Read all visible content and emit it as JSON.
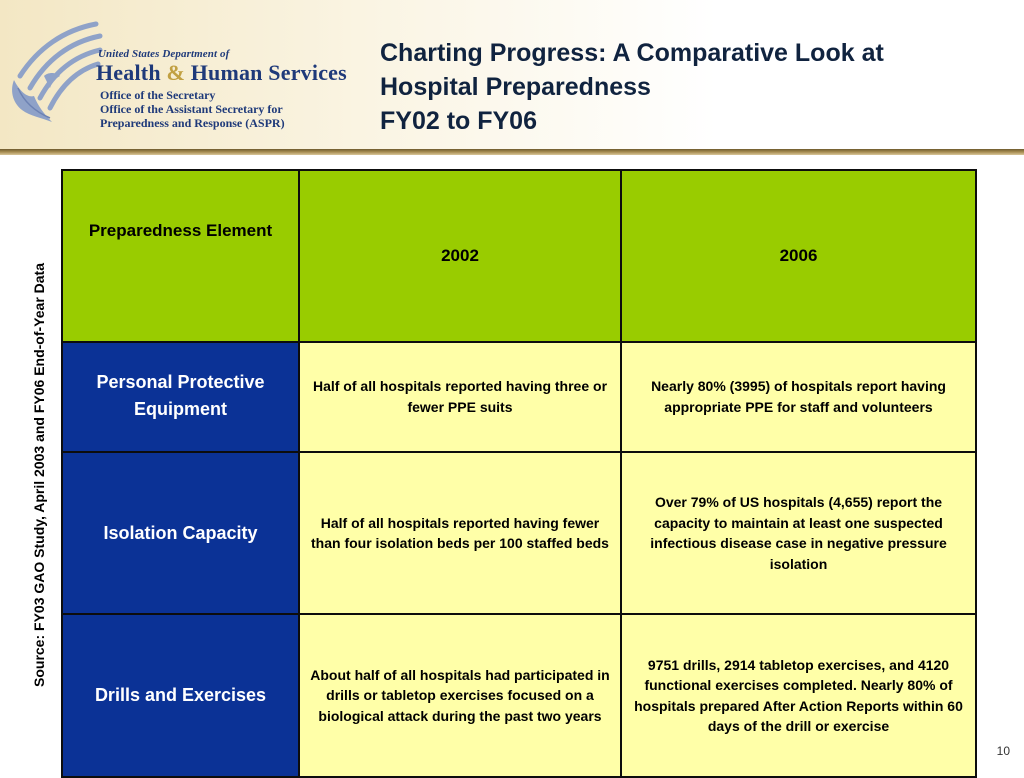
{
  "header": {
    "agency": {
      "line1": "United States  Department of",
      "line2_part1": "Health",
      "line2_amp": "&",
      "line2_part2": "Human Services",
      "line3": "Office of  the Secretary",
      "line4": "Office of  the Assistant Secretary for",
      "line5": "Preparedness and Response (ASPR)"
    },
    "logo_icon": "hhs-eagle-logo-icon",
    "title_lines": [
      "Charting Progress: A Comparative Look at",
      "Hospital Preparedness",
      "FY02 to FY06"
    ]
  },
  "source_note": "Source: FY03 GAO Study, April 2003 and FY06 End-of-Year Data",
  "table": {
    "headers": [
      "Preparedness Element",
      "2002",
      "2006"
    ],
    "rows": [
      {
        "element": "Personal Protective Equipment",
        "y2002": "Half of all hospitals reported having three or fewer PPE suits",
        "y2006": "Nearly 80% (3995) of hospitals report having appropriate PPE for staff and volunteers"
      },
      {
        "element": "Isolation Capacity",
        "y2002": "Half of all hospitals reported having fewer than four isolation beds per 100 staffed beds",
        "y2006": "Over 79% of US hospitals (4,655) report the capacity to maintain at least one suspected infectious disease case in negative pressure isolation"
      },
      {
        "element": "Drills and Exercises",
        "y2002": "About half of all hospitals had participated in drills or tabletop exercises focused on a biological attack during the past two years",
        "y2006": "9751 drills, 2914 tabletop exercises, and 4120 functional exercises completed. Nearly 80% of hospitals prepared After Action Reports within 60 days of the drill or exercise"
      }
    ]
  },
  "colors": {
    "header_green": "#99cc00",
    "rowhead_blue": "#0b3296",
    "cell_yellow": "#ffffa8",
    "title_navy": "#10233f"
  },
  "page_number": "10"
}
